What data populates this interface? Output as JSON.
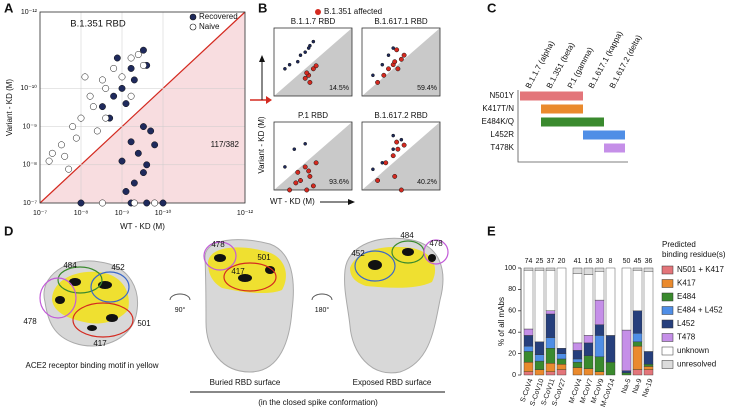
{
  "panel_labels": [
    "A",
    "B",
    "C",
    "D",
    "E"
  ],
  "chart_data": [
    {
      "type": "scatter",
      "title": "B.1.351 RBD",
      "x_label": "WT - KD (M)",
      "y_label": "Variant - KD (M)",
      "log": true,
      "grid": true,
      "legend": "upper right",
      "annotation": "117/382",
      "xlim": [
        1e-07,
        1e-12
      ],
      "ylim": [
        1e-07,
        1e-12
      ],
      "xticks": [
        {
          "value": 1e-07,
          "label": "10⁻⁷"
        },
        {
          "value": 1e-08,
          "label": "10⁻⁸"
        },
        {
          "value": 1e-09,
          "label": "10⁻⁹"
        },
        {
          "value": 1e-10,
          "label": "10⁻¹⁰"
        },
        {
          "value": 1e-12,
          "label": "10⁻¹²"
        }
      ],
      "yticks": [
        {
          "value": 1e-07,
          "label": "10⁻⁷"
        },
        {
          "value": 1e-08,
          "label": "10⁻⁸"
        },
        {
          "value": 1e-09,
          "label": "10⁻⁹"
        },
        {
          "value": 1e-10,
          "label": "10⁻¹⁰"
        },
        {
          "value": 1e-12,
          "label": "10⁻¹²"
        }
      ],
      "series": [
        {
          "name": "Recovered",
          "color": "#1f2a5c",
          "x": [
            3e-09,
            1e-09,
            6e-10,
            1.6e-09,
            3e-10,
            5e-10,
            2e-09,
            2.5e-10,
            8e-10,
            1.3e-09,
            4e-10,
            3e-10,
            6e-10,
            2.5e-10,
            5e-10,
            2e-10,
            1e-09,
            3e-10,
            1.6e-10,
            8e-10,
            1e-08,
            6e-10,
            2.5e-10,
            1e-10
          ],
          "values": [
            3e-10,
            1e-10,
            3e-11,
            1.6e-10,
            1e-11,
            6e-11,
            6e-10,
            2.5e-11,
            2.5e-10,
            1.6e-11,
            5e-09,
            1.6e-08,
            2.5e-09,
            1e-08,
            3e-08,
            1.3e-09,
            8e-09,
            1e-09,
            3e-09,
            5e-08,
            1e-07,
            1e-07,
            1e-07,
            1e-07
          ]
        },
        {
          "name": "Naive",
          "color": "#ffffff",
          "x": [
            3e-08,
            1.6e-08,
            1e-08,
            6e-09,
            3e-09,
            5e-09,
            5e-08,
            2.5e-08,
            2.5e-09,
            1.6e-09,
            1e-09,
            6e-10,
            4e-09,
            1.3e-08,
            8e-09,
            4e-10,
            6e-08,
            3e-09,
            5e-10,
            1.6e-10,
            6e-10,
            2.5e-09,
            2e-08,
            3e-10
          ],
          "values": [
            3e-09,
            1e-09,
            6e-10,
            1.6e-10,
            6e-11,
            3e-10,
            5e-09,
            6e-09,
            1e-10,
            3e-11,
            5e-11,
            1.6e-11,
            1.3e-09,
            2e-09,
            5e-11,
            1.3e-11,
            8e-09,
            1e-07,
            1e-07,
            1e-07,
            1.6e-10,
            6e-10,
            1.3e-08,
            2.5e-11
          ]
        }
      ]
    },
    {
      "type": "scatter",
      "title": "B.1.1.7 RBD",
      "annotation": "14.5%",
      "log": true,
      "xlim": [
        1e-07,
        1e-12
      ],
      "ylim": [
        1e-07,
        1e-12
      ],
      "series": [
        {
          "name": "B.1.351 affected",
          "color": "#d42a20",
          "x": [
            6e-10,
            3e-10,
            1e-09,
            2e-10,
            5e-10,
            8e-10
          ],
          "values": [
            3e-09,
            1e-09,
            5e-09,
            6e-10,
            1e-08,
            2e-09
          ]
        },
        {
          "color": "#1f2a5c",
          "x": [
            3e-09,
            1e-09,
            5e-10,
            2e-08,
            1e-08,
            3e-10,
            6e-10,
            2e-09
          ],
          "values": [
            3e-10,
            6e-11,
            2e-11,
            1e-09,
            5e-10,
            1e-11,
            3e-11,
            1e-10
          ]
        }
      ]
    },
    {
      "type": "scatter",
      "title": "B.1.617.1 RBD",
      "annotation": "59.4%",
      "log": true,
      "xlim": [
        1e-07,
        1e-12
      ],
      "ylim": [
        1e-07,
        1e-12
      ],
      "series": [
        {
          "color": "#d42a20",
          "x": [
            2e-09,
            1e-09,
            5e-10,
            3e-10,
            8e-10,
            1e-08,
            4e-09,
            6e-10,
            2e-10
          ],
          "values": [
            1e-09,
            5e-10,
            1e-09,
            2e-10,
            3e-10,
            1e-08,
            3e-09,
            4e-11,
            1e-10
          ]
        },
        {
          "color": "#1f2a5c",
          "x": [
            5e-09,
            2e-09,
            1e-09,
            2e-08
          ],
          "values": [
            5e-10,
            1e-10,
            3e-11,
            3e-09
          ]
        }
      ]
    },
    {
      "type": "scatter",
      "title": "P.1 RBD",
      "annotation": "93.6%",
      "log": true,
      "xlim": [
        1e-07,
        1e-12
      ],
      "ylim": [
        1e-07,
        1e-12
      ],
      "series": [
        {
          "color": "#d42a20",
          "x": [
            3e-09,
            1e-09,
            5e-10,
            3e-10,
            8e-10,
            1e-08,
            4e-09,
            6e-10,
            2e-10,
            2e-09
          ],
          "values": [
            5e-09,
            2e-09,
            1e-08,
            5e-08,
            1e-07,
            1e-07,
            3e-08,
            4e-09,
            1e-09,
            2e-08
          ]
        },
        {
          "color": "#1f2a5c",
          "x": [
            2e-08,
            5e-09,
            1e-09
          ],
          "values": [
            2e-09,
            1e-10,
            4e-11
          ]
        }
      ]
    },
    {
      "type": "scatter",
      "title": "B.1.617.2 RBD",
      "annotation": "40.2%",
      "log": true,
      "xlim": [
        1e-07,
        1e-12
      ],
      "ylim": [
        1e-07,
        1e-12
      ],
      "series": [
        {
          "color": "#d42a20",
          "x": [
            3e-09,
            1e-09,
            5e-10,
            3e-10,
            8e-10,
            1e-08,
            6e-10,
            2e-10
          ],
          "values": [
            1e-09,
            3e-10,
            1e-10,
            1e-07,
            1e-08,
            2e-08,
            3e-11,
            5e-11
          ]
        },
        {
          "color": "#1f2a5c",
          "x": [
            2e-08,
            5e-09,
            1e-09,
            3e-10,
            1e-09
          ],
          "values": [
            3e-09,
            1e-09,
            1e-10,
            2e-11,
            1e-11
          ]
        }
      ]
    },
    {
      "type": "stacked_bar",
      "y_label": "% of all mAbs",
      "legend_title": [
        "Predicted",
        "binding residue(s)"
      ],
      "categories": [
        "S-CoV4",
        "S-CoV10",
        "S-CoV11",
        "S-CoV27",
        "M-CoV4",
        "M-CoV7",
        "M-CoV9",
        "M-CoV14",
        "Na-5",
        "Na-9",
        "Na-19"
      ],
      "counts": [
        74,
        25,
        37,
        20,
        41,
        16,
        30,
        8,
        50,
        45,
        36
      ],
      "ylim": [
        0,
        100
      ],
      "yticks": [
        0,
        20,
        40,
        60,
        80,
        100
      ],
      "series": [
        {
          "name": "N501 + K417",
          "color": "#e3757a",
          "values": [
            3,
            0,
            3,
            5,
            0,
            0,
            0,
            0,
            0,
            5,
            5
          ]
        },
        {
          "name": "K417",
          "color": "#ea8a2d",
          "values": [
            9,
            5,
            8,
            5,
            7,
            6,
            3,
            0,
            0,
            22,
            3
          ]
        },
        {
          "name": "E484",
          "color": "#3a8a2e",
          "values": [
            10,
            8,
            14,
            5,
            5,
            12,
            14,
            12,
            2,
            4,
            2
          ]
        },
        {
          "name": "E484 + L452",
          "color": "#4f8ee6",
          "values": [
            5,
            6,
            10,
            5,
            3,
            0,
            20,
            0,
            0,
            8,
            0
          ]
        },
        {
          "name": "L452",
          "color": "#263f7c",
          "values": [
            10,
            12,
            22,
            5,
            8,
            12,
            10,
            25,
            2,
            21,
            12
          ]
        },
        {
          "name": "T478",
          "color": "#c58fe8",
          "values": [
            6,
            0,
            3,
            0,
            7,
            7,
            23,
            0,
            38,
            0,
            0
          ]
        },
        {
          "name": "unknown",
          "color": "#ffffff",
          "values": [
            55,
            67,
            38,
            75,
            65,
            57,
            27,
            63,
            58,
            38,
            75
          ]
        },
        {
          "name": "unresolved",
          "color": "#dcdcdc",
          "values": [
            2,
            2,
            2,
            0,
            5,
            6,
            3,
            0,
            0,
            2,
            3
          ]
        }
      ]
    }
  ],
  "panel_b": {
    "legend": "B.1.351 affected",
    "x_label": "WT - KD (M)",
    "y_label": "Variant - KD (M)"
  },
  "panel_c": {
    "variants": [
      "B.1.1.7 (alpha)",
      "B.1.351 (beta)",
      "P.1 (gamma)",
      "B.1.617.1 (kappa)",
      "B.1.617.2 (delta)"
    ],
    "mutations": [
      {
        "label": "N501Y",
        "color": "#e3757a",
        "from": 0,
        "to": 2
      },
      {
        "label": "K417T/N",
        "color": "#ea8a2d",
        "from": 1,
        "to": 2
      },
      {
        "label": "E484K/Q",
        "color": "#3a8a2e",
        "from": 1,
        "to": 3
      },
      {
        "label": "L452R",
        "color": "#4f8ee6",
        "from": 3,
        "to": 4
      },
      {
        "label": "T478K",
        "color": "#c58fe8",
        "from": 4,
        "to": 4
      }
    ]
  },
  "panel_d": {
    "sites": [
      "484",
      "452",
      "478",
      "501",
      "417",
      "478",
      "417",
      "501",
      "452",
      "484",
      "478"
    ],
    "rotations": [
      "90°",
      "180°"
    ],
    "caption": "ACE2 receptor binding motif in yellow",
    "buried": "Buried RBD surface",
    "exposed": "Exposed RBD surface",
    "note": "(in the closed spike conformation)"
  }
}
